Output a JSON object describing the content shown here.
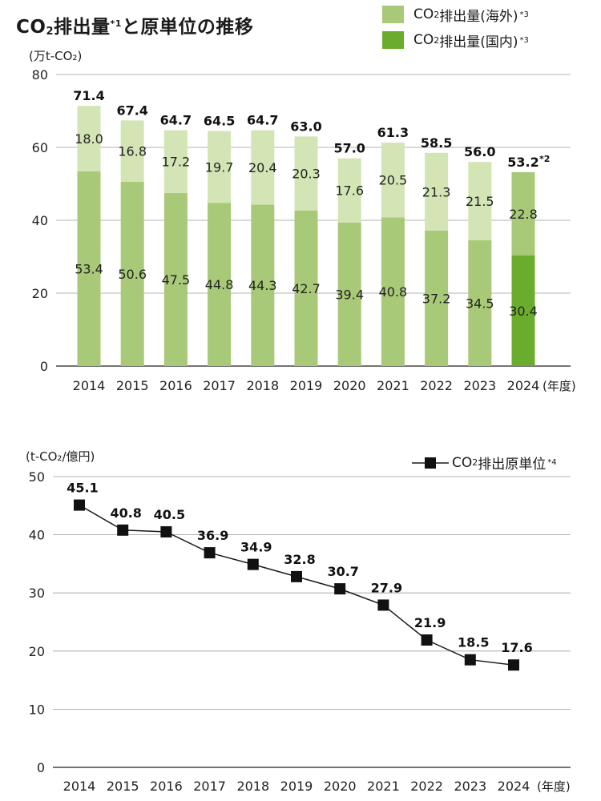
{
  "title": {
    "main": "CO",
    "sub": "2",
    "rest": "排出量",
    "mark": "*1",
    "tail": "と原単位の推移"
  },
  "legend_top": [
    {
      "main": "CO",
      "sub": "2",
      "rest": " 排出量(海外)",
      "mark": "*3",
      "color": "#a8c977"
    },
    {
      "main": "CO",
      "sub": "2",
      "rest": " 排出量(国内)",
      "mark": "*3",
      "color": "#6aad2e"
    }
  ],
  "legend_bottom": {
    "main": "CO",
    "sub": "2",
    "rest": " 排出原単位",
    "mark": "*4"
  },
  "chart_data": [
    {
      "type": "bar",
      "stacked": true,
      "ylabel": "(万t-CO₂)",
      "xlabel": "(年度)",
      "ylim": [
        0,
        80
      ],
      "yticks": [
        0,
        20,
        40,
        60,
        80
      ],
      "grid": true,
      "legend_position": "top-right",
      "categories": [
        "2014",
        "2015",
        "2016",
        "2017",
        "2018",
        "2019",
        "2020",
        "2021",
        "2022",
        "2023",
        "2024"
      ],
      "series": [
        {
          "name": "CO₂ 排出量(国内)",
          "values": [
            53.4,
            50.6,
            47.5,
            44.8,
            44.3,
            42.7,
            39.4,
            40.8,
            37.2,
            34.5,
            30.4
          ]
        },
        {
          "name": "CO₂ 排出量(海外)",
          "values": [
            18.0,
            16.8,
            17.2,
            19.7,
            20.4,
            20.3,
            17.6,
            20.5,
            21.3,
            21.5,
            22.8
          ]
        }
      ],
      "totals": [
        "71.4",
        "67.4",
        "64.7",
        "64.5",
        "64.7",
        "63.0",
        "57.0",
        "61.3",
        "58.5",
        "56.0",
        "53.2"
      ],
      "total_annotations": {
        "2024": "*2"
      },
      "colors": {
        "domestic_past": "#a8c977",
        "overseas_past": "#d3e5b5",
        "domestic_latest": "#6aad2e",
        "overseas_latest": "#a8c977"
      }
    },
    {
      "type": "line",
      "ylabel": "(t-CO₂/億円)",
      "xlabel": "(年度)",
      "ylim": [
        0,
        50
      ],
      "yticks": [
        0,
        10,
        20,
        30,
        40,
        50
      ],
      "grid": true,
      "legend_position": "top-right",
      "x": [
        "2014",
        "2015",
        "2016",
        "2017",
        "2018",
        "2019",
        "2020",
        "2021",
        "2022",
        "2023",
        "2024"
      ],
      "series": [
        {
          "name": "CO₂ 排出原単位",
          "values": [
            45.1,
            40.8,
            40.5,
            36.9,
            34.9,
            32.8,
            30.7,
            27.9,
            21.9,
            18.5,
            17.6
          ]
        }
      ],
      "labels": [
        "45.1",
        "40.8",
        "40.5",
        "36.9",
        "34.9",
        "32.8",
        "30.7",
        "27.9",
        "21.9",
        "18.5",
        "17.6"
      ]
    }
  ]
}
